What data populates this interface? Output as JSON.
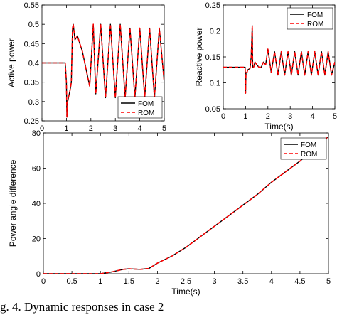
{
  "figure": {
    "caption": "g. 4. Dynamic responses in case 2"
  },
  "colors": {
    "fom": "#000000",
    "rom": "#ff0000"
  },
  "chart_data": [
    {
      "type": "line",
      "title": "",
      "xlabel": "Time(s)",
      "ylabel": "Active power",
      "xlim": [
        0,
        5
      ],
      "ylim": [
        0.25,
        0.55
      ],
      "xticks": [
        "0",
        "1",
        "2",
        "3",
        "4",
        "5"
      ],
      "yticks": [
        "0.25",
        "0.3",
        "0.35",
        "0.4",
        "0.45",
        "0.5",
        "0.55"
      ],
      "grid": false,
      "legend_position": "bottom-right",
      "series": [
        {
          "name": "FOM",
          "style": "solid",
          "x": [
            0,
            0.9,
            0.95,
            1.0,
            1.02,
            1.05,
            1.15,
            1.2,
            1.25,
            1.28,
            1.35,
            1.45,
            1.55,
            1.65,
            1.75,
            1.85,
            1.95,
            2.1,
            2.2,
            2.4,
            2.6,
            2.8,
            3.0,
            3.2,
            3.4,
            3.6,
            3.8,
            4.0,
            4.2,
            4.4,
            4.6,
            4.8,
            5.0
          ],
          "y": [
            0.4,
            0.4,
            0.4,
            0.35,
            0.26,
            0.3,
            0.33,
            0.35,
            0.49,
            0.5,
            0.46,
            0.47,
            0.45,
            0.43,
            0.4,
            0.37,
            0.34,
            0.5,
            0.32,
            0.5,
            0.31,
            0.5,
            0.31,
            0.5,
            0.31,
            0.49,
            0.31,
            0.49,
            0.31,
            0.49,
            0.31,
            0.49,
            0.35
          ]
        },
        {
          "name": "ROM",
          "style": "dashed",
          "x": [
            0,
            0.9,
            0.95,
            1.0,
            1.02,
            1.05,
            1.15,
            1.2,
            1.25,
            1.28,
            1.35,
            1.45,
            1.55,
            1.65,
            1.75,
            1.85,
            1.95,
            2.1,
            2.2,
            2.4,
            2.6,
            2.8,
            3.0,
            3.2,
            3.4,
            3.6,
            3.8,
            4.0,
            4.2,
            4.4,
            4.6,
            4.8,
            5.0
          ],
          "y": [
            0.4,
            0.4,
            0.4,
            0.35,
            0.26,
            0.3,
            0.33,
            0.35,
            0.49,
            0.5,
            0.46,
            0.47,
            0.45,
            0.43,
            0.4,
            0.37,
            0.34,
            0.5,
            0.32,
            0.5,
            0.31,
            0.5,
            0.31,
            0.5,
            0.31,
            0.49,
            0.31,
            0.49,
            0.31,
            0.49,
            0.31,
            0.49,
            0.35
          ]
        }
      ]
    },
    {
      "type": "line",
      "title": "",
      "xlabel": "Time(s)",
      "ylabel": "Reactive power",
      "xlim": [
        0,
        5
      ],
      "ylim": [
        0.05,
        0.25
      ],
      "xticks": [
        "0",
        "1",
        "2",
        "3",
        "4",
        "5"
      ],
      "yticks": [
        "0.05",
        "0.1",
        "0.15",
        "0.2",
        "0.25"
      ],
      "grid": false,
      "legend_position": "top-right",
      "series": [
        {
          "name": "FOM",
          "style": "solid",
          "x": [
            0,
            0.98,
            1.0,
            1.02,
            1.06,
            1.1,
            1.2,
            1.25,
            1.3,
            1.32,
            1.36,
            1.42,
            1.5,
            1.6,
            1.7,
            1.8,
            1.9,
            2.0,
            2.15,
            2.3,
            2.45,
            2.6,
            2.75,
            2.9,
            3.05,
            3.2,
            3.35,
            3.5,
            3.65,
            3.8,
            3.95,
            4.1,
            4.25,
            4.4,
            4.55,
            4.7,
            4.85,
            5.0
          ],
          "y": [
            0.13,
            0.13,
            0.08,
            0.12,
            0.12,
            0.125,
            0.128,
            0.15,
            0.21,
            0.13,
            0.13,
            0.14,
            0.135,
            0.13,
            0.13,
            0.14,
            0.135,
            0.165,
            0.12,
            0.16,
            0.115,
            0.16,
            0.115,
            0.16,
            0.115,
            0.16,
            0.115,
            0.16,
            0.115,
            0.16,
            0.115,
            0.16,
            0.115,
            0.16,
            0.115,
            0.16,
            0.115,
            0.14
          ]
        },
        {
          "name": "ROM",
          "style": "dashed",
          "x": [
            0,
            0.98,
            1.0,
            1.02,
            1.06,
            1.1,
            1.2,
            1.25,
            1.3,
            1.32,
            1.36,
            1.42,
            1.5,
            1.6,
            1.7,
            1.8,
            1.9,
            2.0,
            2.15,
            2.3,
            2.45,
            2.6,
            2.75,
            2.9,
            3.05,
            3.2,
            3.35,
            3.5,
            3.65,
            3.8,
            3.95,
            4.1,
            4.25,
            4.4,
            4.55,
            4.7,
            4.85,
            5.0
          ],
          "y": [
            0.13,
            0.13,
            0.08,
            0.12,
            0.12,
            0.125,
            0.128,
            0.15,
            0.21,
            0.13,
            0.13,
            0.14,
            0.135,
            0.13,
            0.13,
            0.14,
            0.135,
            0.165,
            0.12,
            0.16,
            0.115,
            0.16,
            0.115,
            0.16,
            0.115,
            0.16,
            0.115,
            0.16,
            0.115,
            0.16,
            0.115,
            0.16,
            0.115,
            0.16,
            0.115,
            0.16,
            0.115,
            0.14
          ]
        }
      ]
    },
    {
      "type": "line",
      "title": "",
      "xlabel": "Time(s)",
      "ylabel": "Power angle difference",
      "xlim": [
        0,
        5
      ],
      "ylim": [
        0,
        80
      ],
      "xticks": [
        "0",
        "0.5",
        "1",
        "1.5",
        "2",
        "2.5",
        "3",
        "3.5",
        "4",
        "4.5",
        "5"
      ],
      "yticks": [
        "0",
        "20",
        "40",
        "60",
        "80"
      ],
      "grid": false,
      "legend_position": "top-right",
      "series": [
        {
          "name": "FOM",
          "style": "solid",
          "x": [
            0,
            1.0,
            1.2,
            1.4,
            1.5,
            1.7,
            1.85,
            2.0,
            2.25,
            2.5,
            2.75,
            3.0,
            3.25,
            3.5,
            3.75,
            4.0,
            4.25,
            4.5,
            4.75,
            5.0
          ],
          "y": [
            0,
            0,
            1,
            2.5,
            2.8,
            2.5,
            3,
            6,
            10,
            15,
            21,
            27,
            33,
            39,
            45,
            52,
            58,
            64,
            71,
            78
          ]
        },
        {
          "name": "ROM",
          "style": "dashed",
          "x": [
            0,
            1.0,
            1.2,
            1.4,
            1.5,
            1.7,
            1.85,
            2.0,
            2.25,
            2.5,
            2.75,
            3.0,
            3.25,
            3.5,
            3.75,
            4.0,
            4.25,
            4.5,
            4.75,
            5.0
          ],
          "y": [
            0,
            0,
            1,
            2.5,
            2.8,
            2.5,
            3,
            6,
            10,
            15,
            21,
            27,
            33,
            39,
            45,
            52,
            58,
            64,
            71,
            78
          ]
        }
      ]
    }
  ]
}
